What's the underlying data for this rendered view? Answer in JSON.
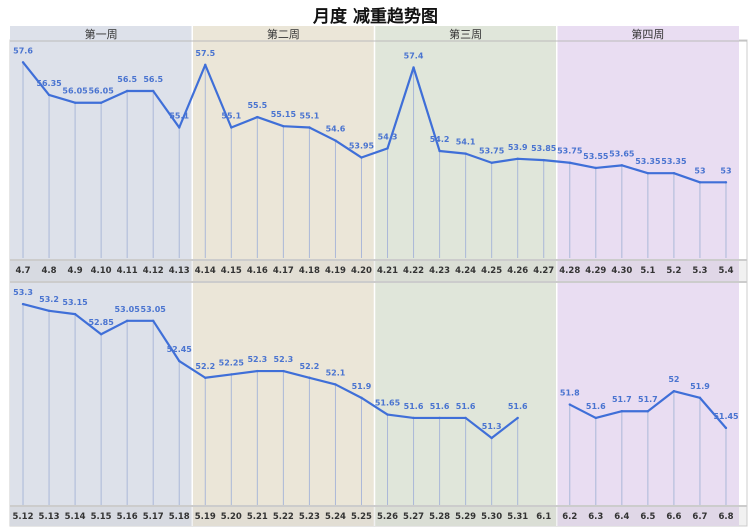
{
  "chart_data": {
    "type": "line",
    "title": "月度  减重趋势图",
    "weeks": [
      "第一周",
      "第二周",
      "第三周",
      "第四周"
    ],
    "band_colors": [
      "#dde1ea",
      "#ebe6d8",
      "#e0e6da",
      "#e9ddf2"
    ],
    "line_color": "#3f6fd8",
    "label_color": "#4a74d0",
    "panels": [
      {
        "categories": [
          "4.7",
          "4.8",
          "4.9",
          "4.10",
          "4.11",
          "4.12",
          "4.13",
          "4.14",
          "4.15",
          "4.16",
          "4.17",
          "4.18",
          "4.19",
          "4.20",
          "4.21",
          "4.22",
          "4.23",
          "4.24",
          "4.25",
          "4.26",
          "4.27",
          "4.28",
          "4.29",
          "4.30",
          "5.1",
          "5.2",
          "5.3",
          "5.4"
        ],
        "values": [
          57.6,
          56.35,
          56.05,
          56.05,
          56.5,
          56.5,
          55.1,
          57.5,
          55.1,
          55.5,
          55.15,
          55.1,
          54.6,
          53.95,
          54.3,
          57.4,
          54.2,
          54.1,
          53.75,
          53.9,
          53.85,
          53.75,
          53.55,
          53.65,
          53.35,
          53.35,
          53,
          53
        ]
      },
      {
        "categories": [
          "5.12",
          "5.13",
          "5.14",
          "5.15",
          "5.16",
          "5.17",
          "5.18",
          "5.19",
          "5.20",
          "5.21",
          "5.22",
          "5.23",
          "5.24",
          "5.25",
          "5.26",
          "5.27",
          "5.28",
          "5.29",
          "5.30",
          "5.31",
          "6.1",
          "6.2",
          "6.3",
          "6.4",
          "6.5",
          "6.6",
          "6.7",
          "6.8"
        ],
        "values": [
          53.3,
          53.2,
          53.15,
          52.85,
          53.05,
          53.05,
          52.45,
          52.2,
          52.25,
          52.3,
          52.3,
          52.2,
          52.1,
          51.9,
          51.65,
          51.6,
          51.6,
          51.6,
          51.3,
          51.6,
          null,
          51.8,
          51.6,
          51.7,
          51.7,
          52,
          51.9,
          51.45
        ]
      }
    ]
  }
}
